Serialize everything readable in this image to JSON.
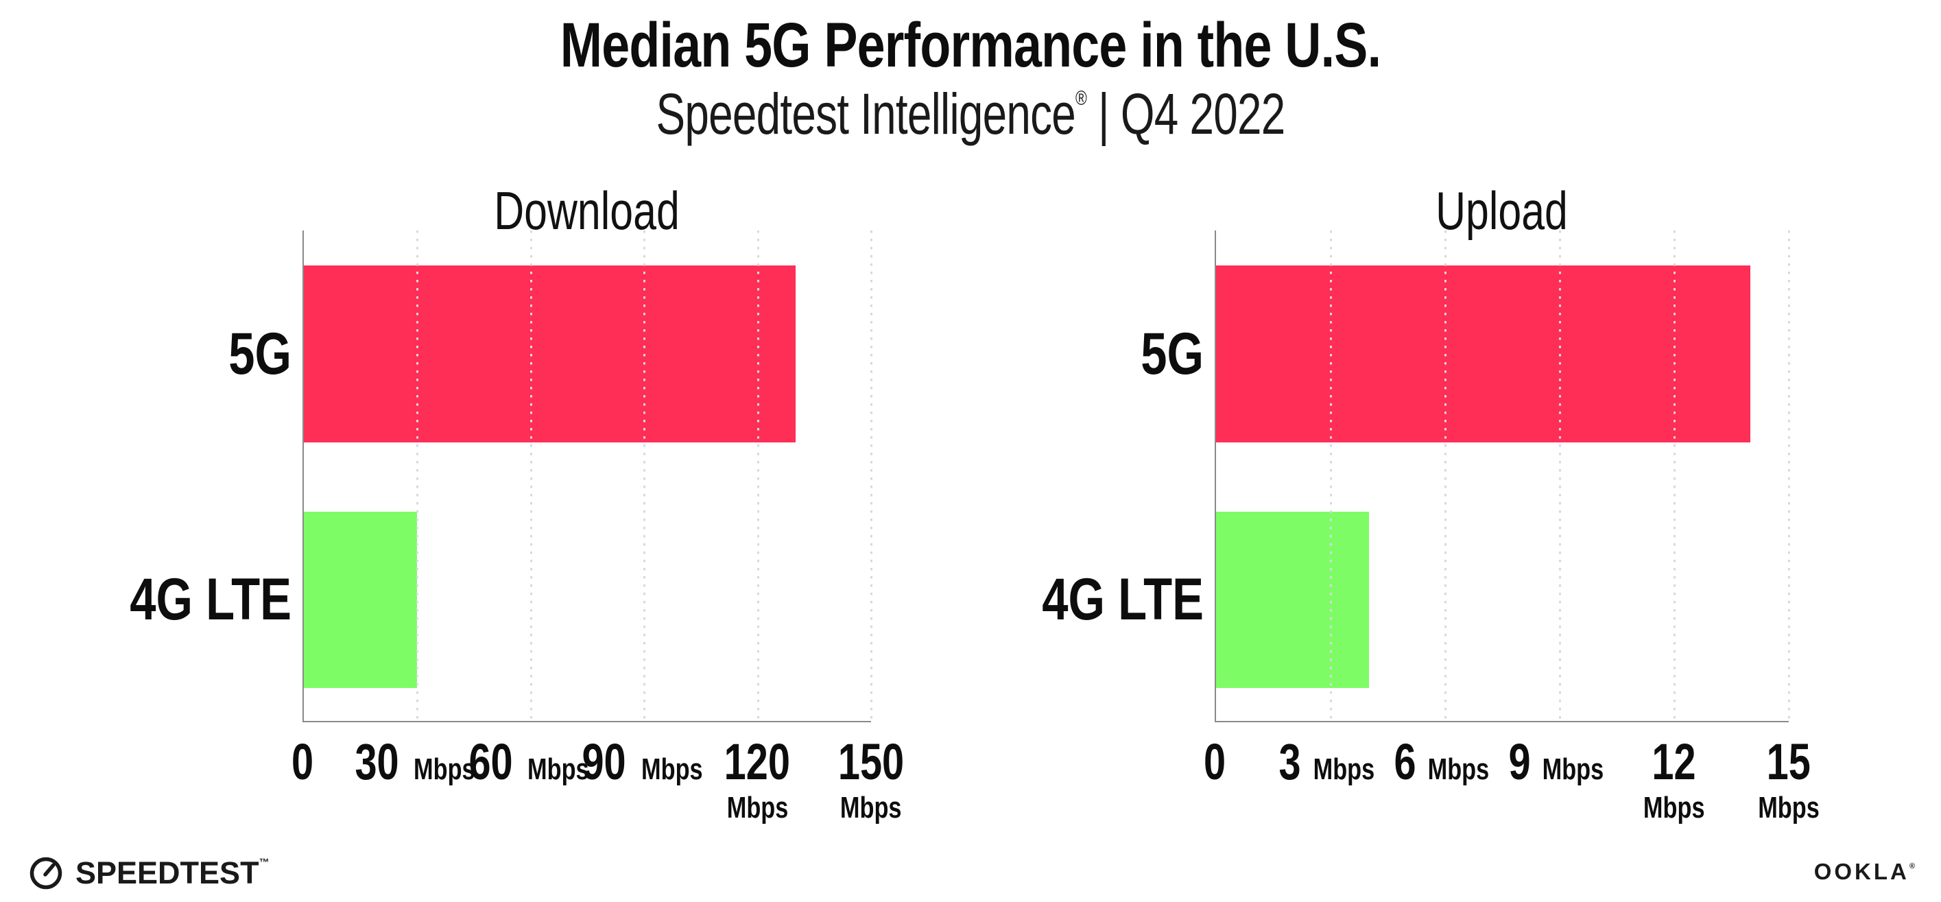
{
  "header": {
    "title": "Median 5G Performance in the U.S.",
    "subtitle_brand": "Speedtest Intelligence",
    "subtitle_mark": "®",
    "subtitle_rest": " | Q4 2022"
  },
  "chart_data": [
    {
      "type": "bar",
      "orientation": "horizontal",
      "title": "Download",
      "categories": [
        "5G",
        "4G LTE"
      ],
      "values": [
        130,
        30
      ],
      "value_unit": "Mbps",
      "xlim": [
        0,
        150
      ],
      "ticks": [
        0,
        30,
        60,
        90,
        120,
        150
      ],
      "grid": "dotted-vertical",
      "legend": "none",
      "bar_colors": [
        "#fe2e56",
        "#7efc66"
      ]
    },
    {
      "type": "bar",
      "orientation": "horizontal",
      "title": "Upload",
      "categories": [
        "5G",
        "4G LTE"
      ],
      "values": [
        14,
        4
      ],
      "value_unit": "Mbps",
      "xlim": [
        0,
        15
      ],
      "ticks": [
        0,
        3,
        6,
        9,
        12,
        15
      ],
      "grid": "dotted-vertical",
      "legend": "none",
      "bar_colors": [
        "#fe2e56",
        "#7efc66"
      ]
    }
  ],
  "footer": {
    "speedtest_wordmark": "SPEEDTEST",
    "speedtest_trademark": "™",
    "speedtest_icon": "gauge-icon",
    "ookla_wordmark": "OOKLA",
    "ookla_registered": "®"
  },
  "colors": {
    "bar_5g": "#fe2e56",
    "bar_4g_lte": "#7efc66",
    "axis": "#8a8a8a",
    "grid_dot": "#d7d8e4",
    "text": "#0d0d0d",
    "background": "#ffffff"
  }
}
